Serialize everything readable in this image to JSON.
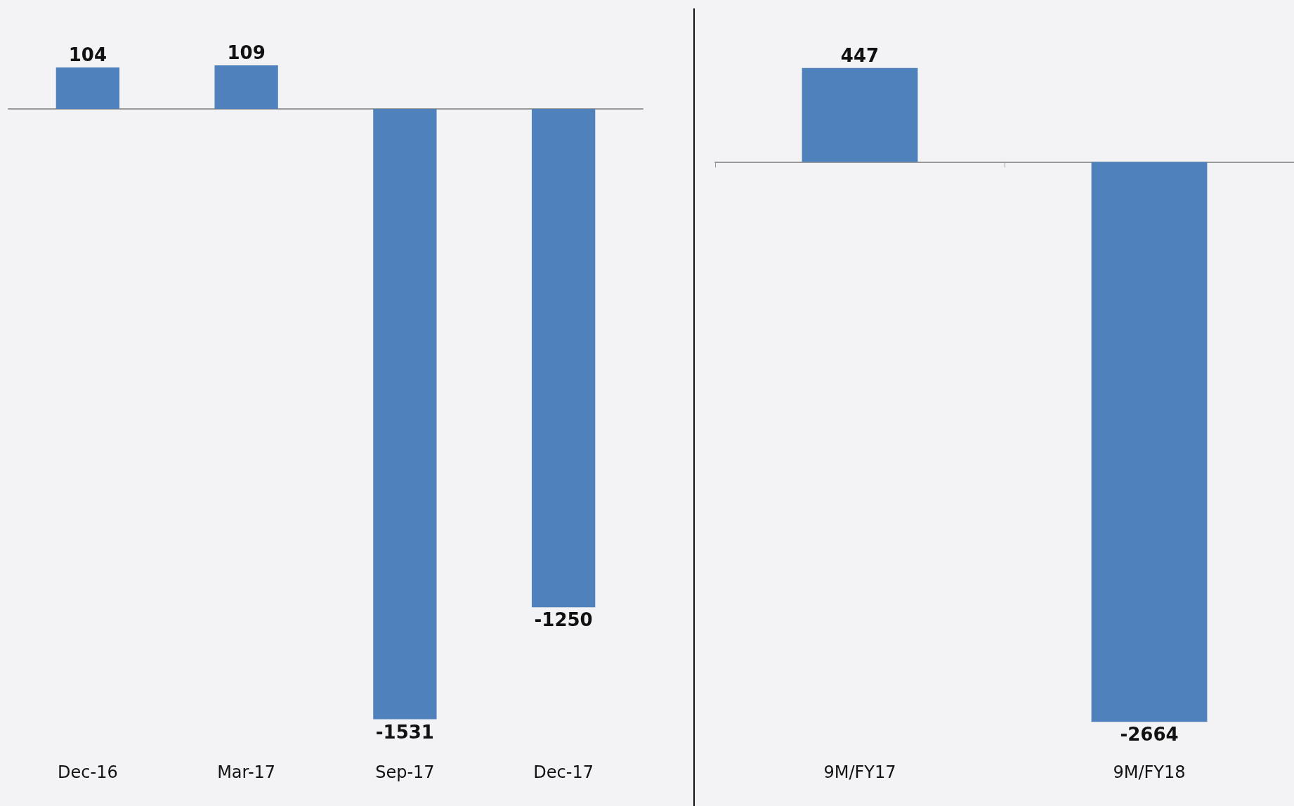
{
  "chart_data": [
    {
      "type": "bar",
      "categories": [
        "Dec-16",
        "Mar-17",
        "Sep-17",
        "Dec-17"
      ],
      "values": [
        104,
        109,
        -1531,
        -1250
      ],
      "color": "#4f81bd",
      "data_labels": true,
      "tick_labels": "x"
    },
    {
      "type": "bar",
      "categories": [
        "9M/FY17",
        "9M/FY18"
      ],
      "values": [
        447,
        -2664
      ],
      "color": "#4f81bd",
      "data_labels": true,
      "tick_labels": "x"
    }
  ]
}
